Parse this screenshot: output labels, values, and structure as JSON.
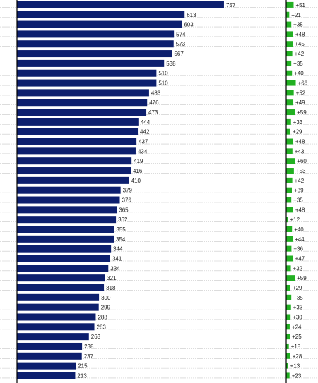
{
  "chart_data": {
    "type": "bar",
    "orientation": "horizontal",
    "colors": {
      "bars": "#0d1f6e",
      "change_bars": "#22b022",
      "grid": "#c8c8c8",
      "axis": "#000000"
    },
    "series": [
      {
        "values": [
          757,
          613,
          603,
          574,
          573,
          567,
          538,
          510,
          510,
          483,
          476,
          473,
          444,
          442,
          437,
          434,
          419,
          416,
          410,
          379,
          376,
          365,
          362,
          355,
          354,
          344,
          341,
          334,
          321,
          318,
          300,
          299,
          288,
          283,
          263,
          238,
          237,
          215,
          213
        ]
      },
      {
        "values": [
          51,
          21,
          35,
          48,
          45,
          42,
          35,
          40,
          66,
          52,
          49,
          59,
          33,
          29,
          48,
          43,
          60,
          53,
          42,
          39,
          35,
          48,
          12,
          40,
          44,
          36,
          47,
          32,
          59,
          29,
          35,
          33,
          30,
          24,
          25,
          18,
          28,
          13,
          23
        ]
      }
    ],
    "value_labels": [
      "757",
      "613",
      "603",
      "574",
      "573",
      "567",
      "538",
      "510",
      "510",
      "483",
      "476",
      "473",
      "444",
      "442",
      "437",
      "434",
      "419",
      "416",
      "410",
      "379",
      "376",
      "365",
      "362",
      "355",
      "354",
      "344",
      "341",
      "334",
      "321",
      "318",
      "300",
      "299",
      "288",
      "283",
      "263",
      "238",
      "237",
      "215",
      "213"
    ],
    "change_labels": [
      "+51",
      "+21",
      "+35",
      "+48",
      "+45",
      "+42",
      "+35",
      "+40",
      "+66",
      "+52",
      "+49",
      "+59",
      "+33",
      "+29",
      "+48",
      "+43",
      "+60",
      "+53",
      "+42",
      "+39",
      "+35",
      "+48",
      "+12",
      "+40",
      "+44",
      "+36",
      "+47",
      "+32",
      "+59",
      "+29",
      "+35",
      "+33",
      "+30",
      "+24",
      "+25",
      "+18",
      "+28",
      "+13",
      "+23"
    ]
  }
}
